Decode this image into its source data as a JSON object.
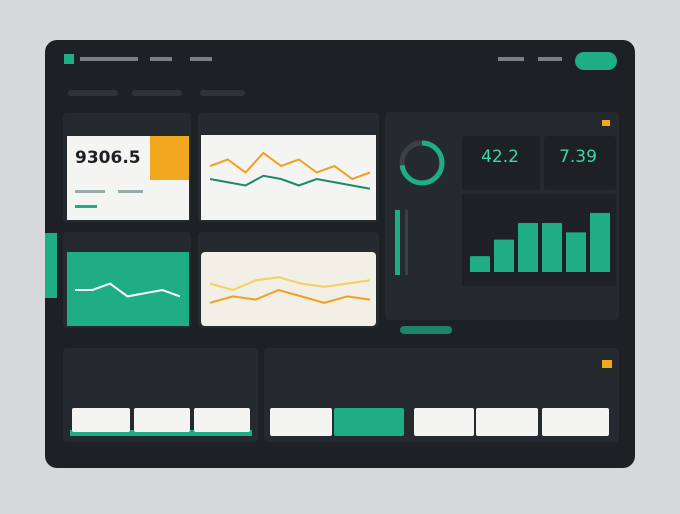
{
  "kpis": {
    "main": "9306.5",
    "stat_a": "42.2",
    "stat_b": "7.39"
  },
  "donut": {
    "value": 73,
    "max": 100,
    "color": "#1fae84"
  },
  "bar_chart": {
    "type": "bar",
    "values": [
      22,
      45,
      68,
      68,
      55,
      82
    ],
    "ylim": [
      0,
      100
    ],
    "color": "#1fae84"
  },
  "line_chart_top": {
    "type": "line",
    "ylim": [
      0,
      10
    ],
    "series": [
      {
        "color": "#f0a020",
        "values": [
          6,
          7,
          5,
          8,
          6,
          7,
          5,
          6,
          4,
          5
        ]
      },
      {
        "color": "#1a8a6a",
        "values": [
          4,
          3.5,
          3,
          4.5,
          4,
          3,
          4,
          3.5,
          3,
          2.5
        ]
      }
    ]
  },
  "line_chart_bottom": {
    "type": "line",
    "ylim": [
      0,
      10
    ],
    "series": [
      {
        "color": "#f0a020",
        "values": [
          3,
          4,
          3.5,
          5,
          4,
          3,
          4,
          3.5
        ]
      },
      {
        "color": "#f5d060",
        "values": [
          6,
          5,
          6.5,
          7,
          6,
          5.5,
          6,
          6.5
        ]
      }
    ]
  },
  "line_chart_green": {
    "type": "line",
    "ylim": [
      0,
      10
    ],
    "series": [
      {
        "color": "#ffffff",
        "values": [
          5,
          5,
          6,
          4,
          4.5,
          5,
          4
        ]
      }
    ]
  }
}
